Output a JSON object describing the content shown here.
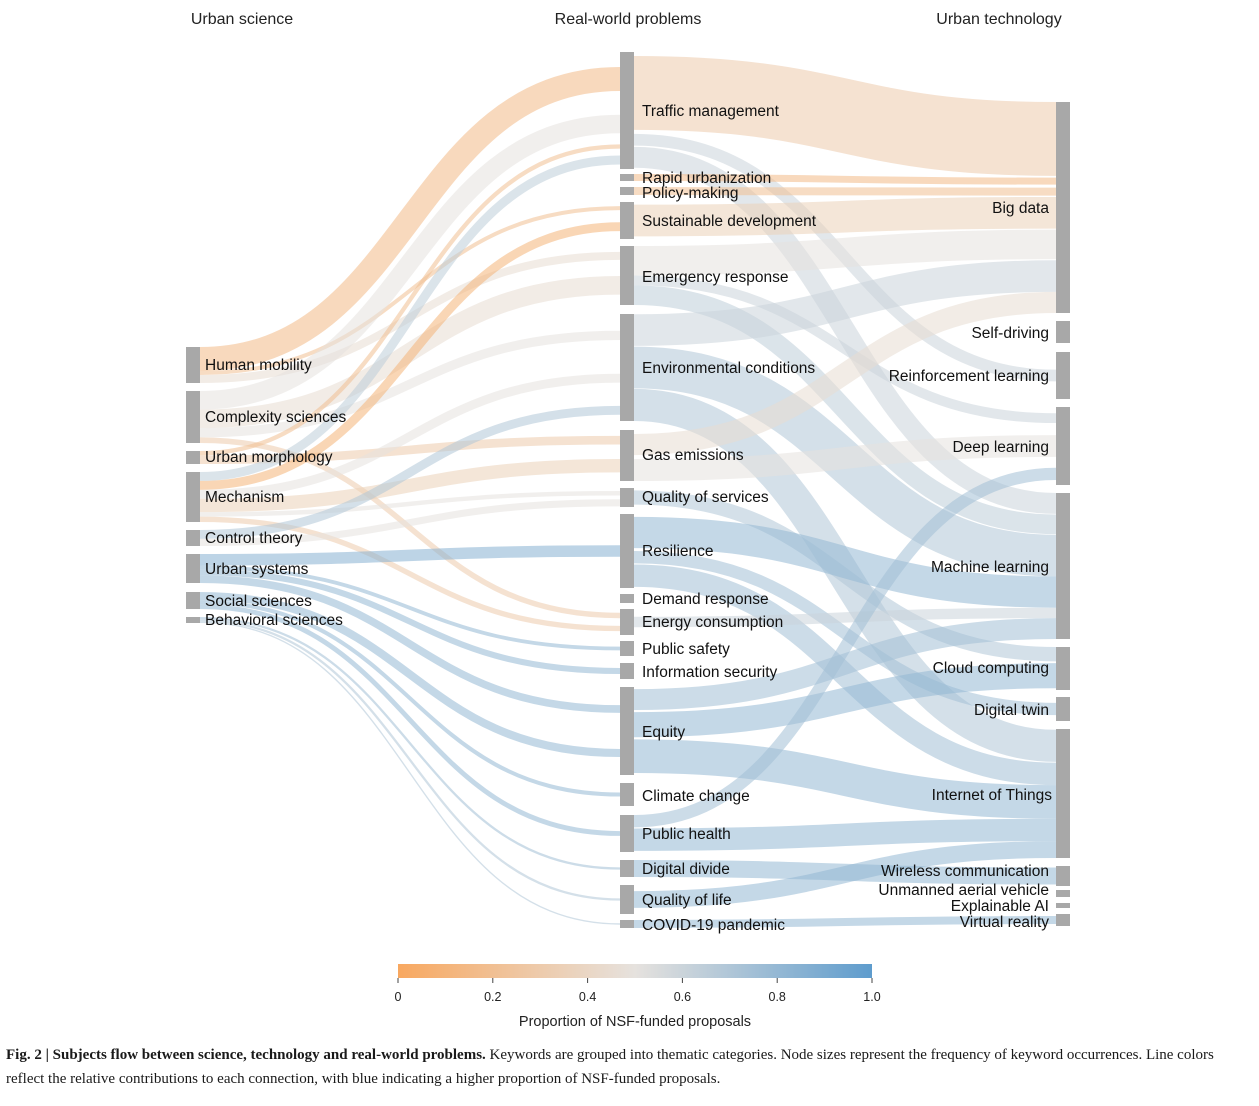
{
  "columns": {
    "left": "Urban science",
    "middle": "Real-world problems",
    "right": "Urban technology"
  },
  "nodes": {
    "left": [
      "Human mobility",
      "Complexity sciences",
      "Urban morphology",
      "Mechanism",
      "Control theory",
      "Urban systems",
      "Social sciences",
      "Behavioral sciences"
    ],
    "middle": [
      "Traffic management",
      "Rapid urbanization",
      "Policy-making",
      "Sustainable development",
      "Emergency response",
      "Environmental conditions",
      "Gas emissions",
      "Quality of services",
      "Resilience",
      "Demand response",
      "Energy consumption",
      "Public safety",
      "Information security",
      "Equity",
      "Climate change",
      "Public health",
      "Digital divide",
      "Quality of life",
      "COVID-19 pandemic"
    ],
    "right": [
      "Big data",
      "Self-driving",
      "Reinforcement learning",
      "Deep learning",
      "Machine learning",
      "Cloud computing",
      "Digital twin",
      "Internet of Things",
      "Wireless communication",
      "Unmanned aerial vehicle",
      "Explainable AI",
      "Virtual reality"
    ]
  },
  "chart_data": {
    "type": "sankey",
    "description_columns": [
      "Urban science",
      "Real-world problems",
      "Urban technology"
    ],
    "node_frequency": {
      "Urban science": {
        "Human mobility": 5,
        "Complexity sciences": 7,
        "Urban morphology": 2,
        "Mechanism": 7,
        "Control theory": 2,
        "Urban systems": 4,
        "Social sciences": 2,
        "Behavioral sciences": 1
      },
      "Real-world problems": {
        "Traffic management": 16,
        "Rapid urbanization": 1,
        "Policy-making": 1,
        "Sustainable development": 5,
        "Emergency response": 8,
        "Environmental conditions": 14,
        "Gas emissions": 7,
        "Quality of services": 3,
        "Resilience": 10,
        "Demand response": 1,
        "Energy consumption": 3,
        "Public safety": 2,
        "Information security": 2,
        "Equity": 12,
        "Climate change": 3,
        "Public health": 5,
        "Digital divide": 3,
        "Quality of life": 4,
        "COVID-19 pandemic": 1
      },
      "Urban technology": {
        "Big data": 28,
        "Self-driving": 3,
        "Reinforcement learning": 6,
        "Deep learning": 10,
        "Machine learning": 19,
        "Cloud computing": 6,
        "Digital twin": 3,
        "Internet of Things": 17,
        "Wireless communication": 3,
        "Unmanned aerial vehicle": 1,
        "Explainable AI": 1,
        "Virtual reality": 1
      }
    },
    "links": [
      {
        "source": "Human mobility",
        "target": "Traffic management",
        "value": 3,
        "nsf": 0.15
      },
      {
        "source": "Human mobility",
        "target": "Emergency response",
        "value": 1,
        "nsf": 0.45
      },
      {
        "source": "Human mobility",
        "target": "Sustainable development",
        "value": 0.5,
        "nsf": 0.2
      },
      {
        "source": "Complexity sciences",
        "target": "Traffic management",
        "value": 2,
        "nsf": 0.5
      },
      {
        "source": "Complexity sciences",
        "target": "Emergency response",
        "value": 2,
        "nsf": 0.45
      },
      {
        "source": "Complexity sciences",
        "target": "Environmental conditions",
        "value": 1,
        "nsf": 0.5
      },
      {
        "source": "Complexity sciences",
        "target": "Energy consumption",
        "value": 0.6,
        "nsf": 0.3
      },
      {
        "source": "Urban morphology",
        "target": "Gas emissions",
        "value": 1,
        "nsf": 0.3
      },
      {
        "source": "Urban morphology",
        "target": "Traffic management",
        "value": 0.5,
        "nsf": 0.2
      },
      {
        "source": "Mechanism",
        "target": "Traffic management",
        "value": 1,
        "nsf": 0.65
      },
      {
        "source": "Mechanism",
        "target": "Sustainable development",
        "value": 1,
        "nsf": 0.1
      },
      {
        "source": "Mechanism",
        "target": "Environmental conditions",
        "value": 1,
        "nsf": 0.5
      },
      {
        "source": "Mechanism",
        "target": "Gas emissions",
        "value": 1.5,
        "nsf": 0.35
      },
      {
        "source": "Mechanism",
        "target": "Quality of services",
        "value": 0.5,
        "nsf": 0.5
      },
      {
        "source": "Mechanism",
        "target": "Energy consumption",
        "value": 0.6,
        "nsf": 0.3
      },
      {
        "source": "Control theory",
        "target": "Environmental conditions",
        "value": 0.5,
        "nsf": 0.7
      },
      {
        "source": "Control theory",
        "target": "Quality of services",
        "value": 0.4,
        "nsf": 0.5
      },
      {
        "source": "Urban systems",
        "target": "Resilience",
        "value": 1.5,
        "nsf": 0.85
      },
      {
        "source": "Urban systems",
        "target": "Information security",
        "value": 0.8,
        "nsf": 0.8
      },
      {
        "source": "Urban systems",
        "target": "Equity",
        "value": 1,
        "nsf": 0.8
      },
      {
        "source": "Urban systems",
        "target": "Public safety",
        "value": 0.5,
        "nsf": 0.8
      },
      {
        "source": "Social sciences",
        "target": "Equity",
        "value": 1,
        "nsf": 0.8
      },
      {
        "source": "Social sciences",
        "target": "Public health",
        "value": 0.6,
        "nsf": 0.8
      },
      {
        "source": "Social sciences",
        "target": "Climate change",
        "value": 0.5,
        "nsf": 0.8
      },
      {
        "source": "Behavioral sciences",
        "target": "Digital divide",
        "value": 0.5,
        "nsf": 0.75
      },
      {
        "source": "Behavioral sciences",
        "target": "Quality of life",
        "value": 0.5,
        "nsf": 0.7
      },
      {
        "source": "Behavioral sciences",
        "target": "COVID-19 pandemic",
        "value": 0.3,
        "nsf": 0.7
      },
      {
        "source": "Traffic management",
        "target": "Big data",
        "value": 7,
        "nsf": 0.3
      },
      {
        "source": "Traffic management",
        "target": "Machine learning",
        "value": 2,
        "nsf": 0.6
      },
      {
        "source": "Traffic management",
        "target": "Reinforcement learning",
        "value": 1,
        "nsf": 0.6
      },
      {
        "source": "Rapid urbanization",
        "target": "Big data",
        "value": 1,
        "nsf": 0.15
      },
      {
        "source": "Policy-making",
        "target": "Big data",
        "value": 1,
        "nsf": 0.2
      },
      {
        "source": "Sustainable development",
        "target": "Big data",
        "value": 3,
        "nsf": 0.35
      },
      {
        "source": "Emergency response",
        "target": "Big data",
        "value": 3,
        "nsf": 0.5
      },
      {
        "source": "Emergency response",
        "target": "Deep learning",
        "value": 1,
        "nsf": 0.6
      },
      {
        "source": "Emergency response",
        "target": "Machine learning",
        "value": 2,
        "nsf": 0.65
      },
      {
        "source": "Environmental conditions",
        "target": "Big data",
        "value": 3,
        "nsf": 0.6
      },
      {
        "source": "Environmental conditions",
        "target": "Machine learning",
        "value": 4,
        "nsf": 0.7
      },
      {
        "source": "Environmental conditions",
        "target": "Internet of Things",
        "value": 3,
        "nsf": 0.7
      },
      {
        "source": "Gas emissions",
        "target": "Big data",
        "value": 2,
        "nsf": 0.45
      },
      {
        "source": "Gas emissions",
        "target": "Deep learning",
        "value": 1.5,
        "nsf": 0.5
      },
      {
        "source": "Quality of services",
        "target": "Cloud computing",
        "value": 1,
        "nsf": 0.7
      },
      {
        "source": "Resilience",
        "target": "Machine learning",
        "value": 3,
        "nsf": 0.8
      },
      {
        "source": "Resilience",
        "target": "Internet of Things",
        "value": 2,
        "nsf": 0.75
      },
      {
        "source": "Resilience",
        "target": "Digital twin",
        "value": 1,
        "nsf": 0.75
      },
      {
        "source": "Energy consumption",
        "target": "Machine learning",
        "value": 1,
        "nsf": 0.6
      },
      {
        "source": "Equity",
        "target": "Internet of Things",
        "value": 3,
        "nsf": 0.8
      },
      {
        "source": "Equity",
        "target": "Cloud computing",
        "value": 2,
        "nsf": 0.8
      },
      {
        "source": "Equity",
        "target": "Machine learning",
        "value": 2,
        "nsf": 0.75
      },
      {
        "source": "Public health",
        "target": "Internet of Things",
        "value": 2,
        "nsf": 0.8
      },
      {
        "source": "Public health",
        "target": "Deep learning",
        "value": 1,
        "nsf": 0.75
      },
      {
        "source": "Digital divide",
        "target": "Wireless communication",
        "value": 1,
        "nsf": 0.8
      },
      {
        "source": "Quality of life",
        "target": "Internet of Things",
        "value": 1.5,
        "nsf": 0.8
      },
      {
        "source": "COVID-19 pandemic",
        "target": "Virtual reality",
        "value": 0.5,
        "nsf": 0.8
      }
    ],
    "colorbar": {
      "title": "Proportion of NSF-funded proposals",
      "ticks": [
        "0",
        "0.2",
        "0.4",
        "0.6",
        "0.8",
        "1.0"
      ],
      "range": [
        0,
        1
      ],
      "colors": [
        "#F8A860",
        "#E6E2DE",
        "#5E9CCD"
      ]
    }
  },
  "legend": {
    "title": "Proportion of NSF-funded proposals",
    "ticks": [
      "0",
      "0.2",
      "0.4",
      "0.6",
      "0.8",
      "1.0"
    ]
  },
  "caption": {
    "label": "Fig. 2 | Subjects flow between science, technology and real-world problems.",
    "text": "Keywords are grouped into thematic categories. Node sizes represent the frequency of keyword occurrences. Line colors reflect the relative contributions to each connection, with blue indicating a higher proportion of NSF-funded proposals."
  },
  "colors": {
    "node": "#A8A8A8",
    "orange": "#F8A860",
    "neutral": "#E6E2DE",
    "blue": "#5E9CCD"
  }
}
